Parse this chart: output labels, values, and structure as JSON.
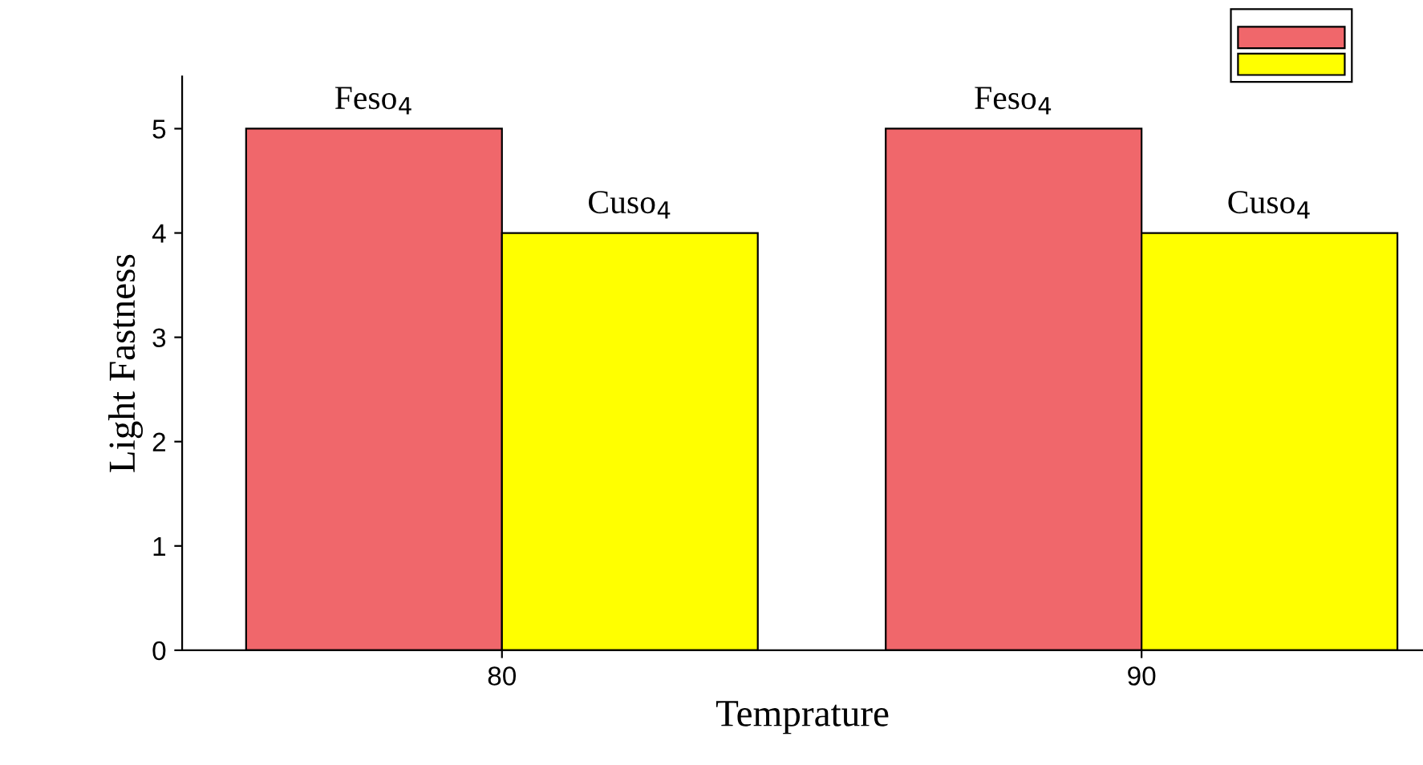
{
  "chart_data": {
    "type": "bar",
    "xlabel": "Temprature",
    "ylabel": "Light Fastness",
    "categories": [
      "80",
      "90"
    ],
    "series": [
      {
        "name": "Feso$_{4}$",
        "color": "#f0676b",
        "values": [
          5,
          5
        ]
      },
      {
        "name": "Cuso$_{4}$",
        "color": "#ffff00",
        "values": [
          4,
          4
        ]
      }
    ],
    "ylim": [
      0,
      5.5
    ],
    "yticks": [
      0,
      1,
      2,
      3,
      4,
      5
    ],
    "grid": false
  }
}
